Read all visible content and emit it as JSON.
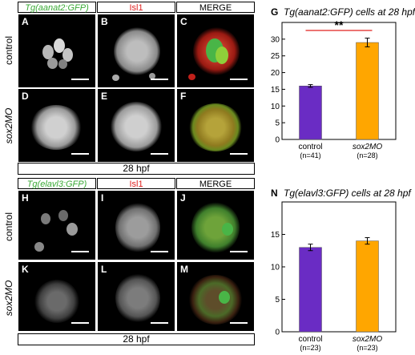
{
  "top": {
    "headers": {
      "gfp": "Tg(aanat2:GFP)",
      "isl": "Isl1",
      "merge": "MERGE"
    },
    "rows": [
      "control",
      "sox2MO"
    ],
    "panels": [
      "A",
      "B",
      "C",
      "D",
      "E",
      "F"
    ],
    "stage": "28 hpf"
  },
  "bottom": {
    "headers": {
      "gfp": "Tg(elavl3:GFP)",
      "isl": "Isl1",
      "merge": "MERGE"
    },
    "rows": [
      "control",
      "sox2MO"
    ],
    "panels": [
      "H",
      "I",
      "J",
      "K",
      "L",
      "M"
    ],
    "stage": "28 hpf"
  },
  "colors": {
    "control": "#6a2cc4",
    "sox2MO": "#ffa600",
    "significance": "#e0201e",
    "gfp": "#3aaa35",
    "isl": "#e0201e"
  },
  "chart_data": [
    {
      "panel": "G",
      "type": "bar",
      "title": "Tg(aanat2:GFP) cells at 28 hpf",
      "categories": [
        "control",
        "sox2MO"
      ],
      "category_n": [
        "(n=41)",
        "(n=28)"
      ],
      "values": [
        16,
        29
      ],
      "errors": [
        0.4,
        1.3
      ],
      "ylim": [
        0,
        35
      ],
      "yticks": [
        0,
        5,
        10,
        15,
        20,
        25,
        30
      ],
      "annotation": "**"
    },
    {
      "panel": "N",
      "type": "bar",
      "title": "Tg(elavl3:GFP) cells at 28 hpf",
      "categories": [
        "control",
        "sox2MO"
      ],
      "category_n": [
        "(n=23)",
        "(n=23)"
      ],
      "values": [
        13,
        14
      ],
      "errors": [
        0.5,
        0.5
      ],
      "ylim": [
        0,
        20
      ],
      "yticks": [
        0,
        5,
        10,
        15
      ]
    }
  ]
}
